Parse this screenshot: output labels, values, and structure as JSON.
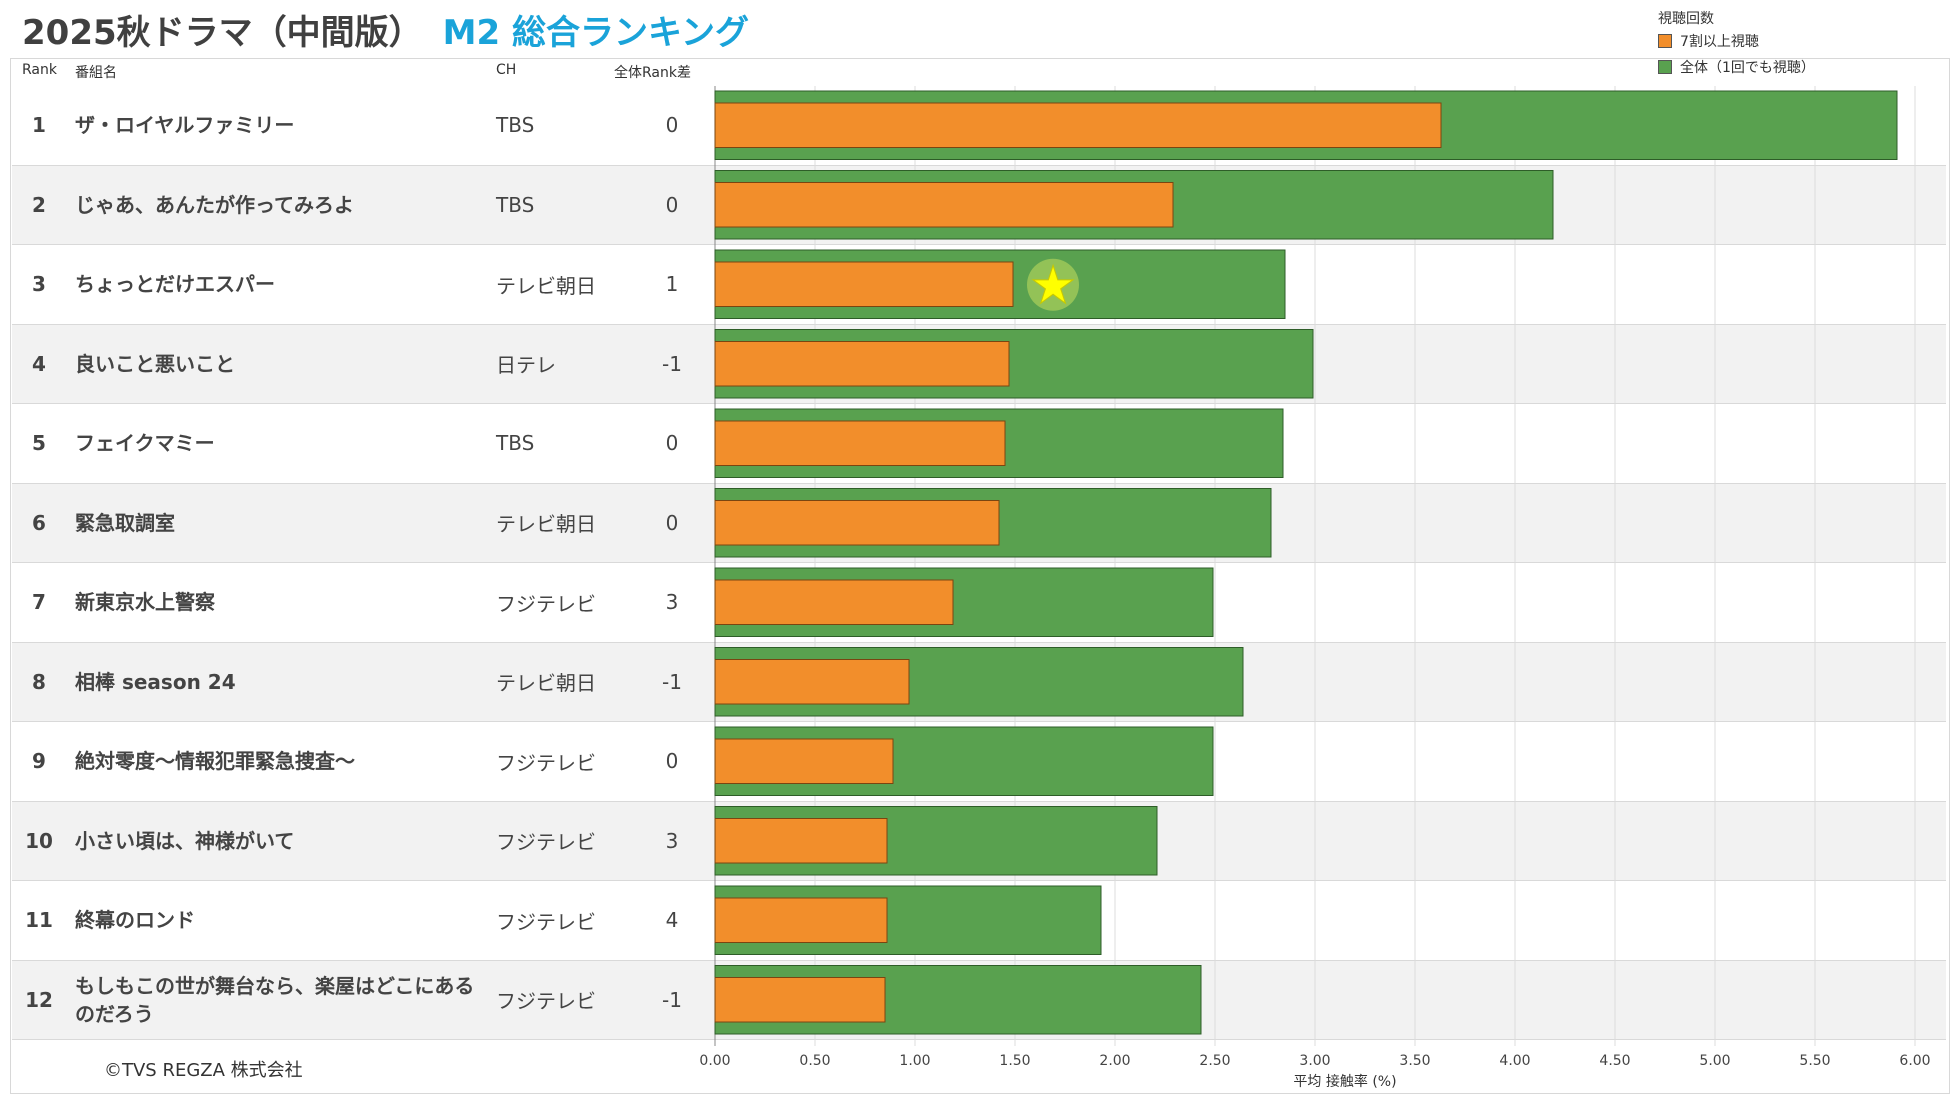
{
  "header": {
    "title_main": "2025秋ドラマ（中間版）",
    "title_accent": "M2 総合ランキング",
    "col_rank": "Rank",
    "col_title": "番組名",
    "col_ch": "CH",
    "col_diff": "全体Rank差"
  },
  "legend": {
    "title": "視聴回数",
    "items": [
      {
        "label": "7割以上視聴",
        "color": "#f28e2b"
      },
      {
        "label": "全体（1回でも視聴）",
        "color": "#59a14f"
      }
    ]
  },
  "rows": [
    {
      "rank": "1",
      "title": "ザ・ロイヤルファミリー",
      "ch": "TBS",
      "diff": "0"
    },
    {
      "rank": "2",
      "title": "じゃあ、あんたが作ってみろよ",
      "ch": "TBS",
      "diff": "0"
    },
    {
      "rank": "3",
      "title": "ちょっとだけエスパー",
      "ch": "テレビ朝日",
      "diff": "1"
    },
    {
      "rank": "4",
      "title": "良いこと悪いこと",
      "ch": "日テレ",
      "diff": "-1"
    },
    {
      "rank": "5",
      "title": "フェイクマミー",
      "ch": "TBS",
      "diff": "0"
    },
    {
      "rank": "6",
      "title": "緊急取調室",
      "ch": "テレビ朝日",
      "diff": "0"
    },
    {
      "rank": "7",
      "title": "新東京水上警察",
      "ch": "フジテレビ",
      "diff": "3"
    },
    {
      "rank": "8",
      "title": "相棒 season 24",
      "ch": "テレビ朝日",
      "diff": "-1"
    },
    {
      "rank": "9",
      "title": "絶対零度～情報犯罪緊急捜査～",
      "ch": "フジテレビ",
      "diff": "0"
    },
    {
      "rank": "10",
      "title": "小さい頃は、神様がいて",
      "ch": "フジテレビ",
      "diff": "3"
    },
    {
      "rank": "11",
      "title": "終幕のロンド",
      "ch": "フジテレビ",
      "diff": "4"
    },
    {
      "rank": "12",
      "title": "もしもこの世が舞台なら、楽屋はどこにあるのだろう",
      "ch": "フジテレビ",
      "diff": "-1"
    }
  ],
  "chart_data": {
    "type": "bar",
    "orientation": "horizontal",
    "categories": [
      "ザ・ロイヤルファミリー",
      "じゃあ、あんたが作ってみろよ",
      "ちょっとだけエスパー",
      "良いこと悪いこと",
      "フェイクマミー",
      "緊急取調室",
      "新東京水上警察",
      "相棒 season 24",
      "絶対零度～情報犯罪緊急捜査～",
      "小さい頃は、神様がいて",
      "終幕のロンド",
      "もしもこの世が舞台なら、楽屋はどこにあるのだろう"
    ],
    "series": [
      {
        "name": "全体（1回でも視聴）",
        "color": "#59a14f",
        "values": [
          5.91,
          4.19,
          2.85,
          2.99,
          2.84,
          2.78,
          2.49,
          2.64,
          2.49,
          2.21,
          1.93,
          2.43
        ]
      },
      {
        "name": "7割以上視聴",
        "color": "#f28e2b",
        "values": [
          3.63,
          2.29,
          1.49,
          1.47,
          1.45,
          1.42,
          1.19,
          0.97,
          0.89,
          0.86,
          0.86,
          0.85
        ]
      }
    ],
    "xlabel": "平均 接触率 (%)",
    "xlim": [
      0,
      6.0
    ],
    "xticks": [
      "0.00",
      "0.50",
      "1.00",
      "1.50",
      "2.00",
      "2.50",
      "3.00",
      "3.50",
      "4.00",
      "4.50",
      "5.00",
      "5.50",
      "6.00"
    ],
    "grid": true,
    "highlight_marker": {
      "symbol": "★",
      "row": 3,
      "color": "#ffff00"
    }
  },
  "footer": {
    "copyright": "©TVS REGZA 株式会社"
  }
}
